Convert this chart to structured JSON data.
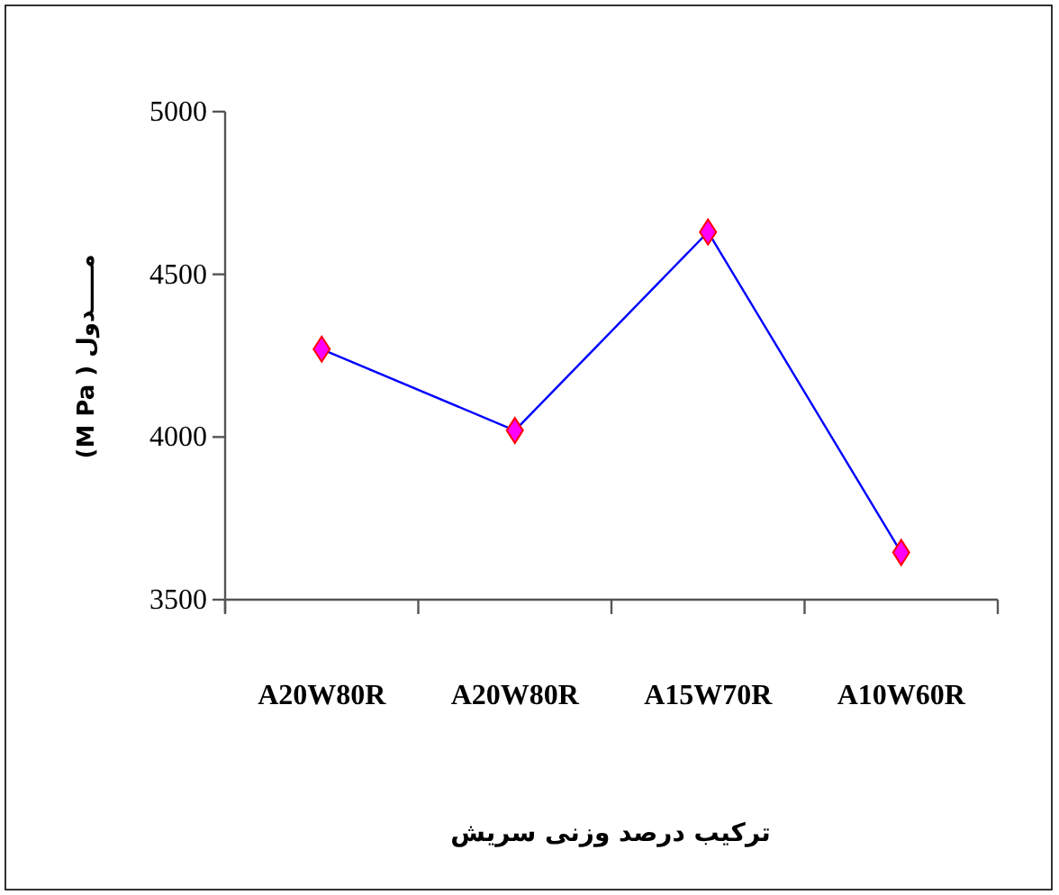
{
  "chart_data": {
    "type": "line",
    "xlabel": "ترکیب درصد وزنی سریش",
    "ylabel": "(M Pa ) مـــــدول",
    "categories": [
      "A20W80R",
      "A20W80R",
      "A15W70R",
      "A10W60R"
    ],
    "series": [
      {
        "color": "#0000ff",
        "values": [
          4270,
          4020,
          4630,
          3645
        ]
      }
    ],
    "ylim": [
      3500,
      5000
    ],
    "yticks": [
      3500,
      4000,
      4500,
      5000
    ],
    "marker": "diamond"
  }
}
